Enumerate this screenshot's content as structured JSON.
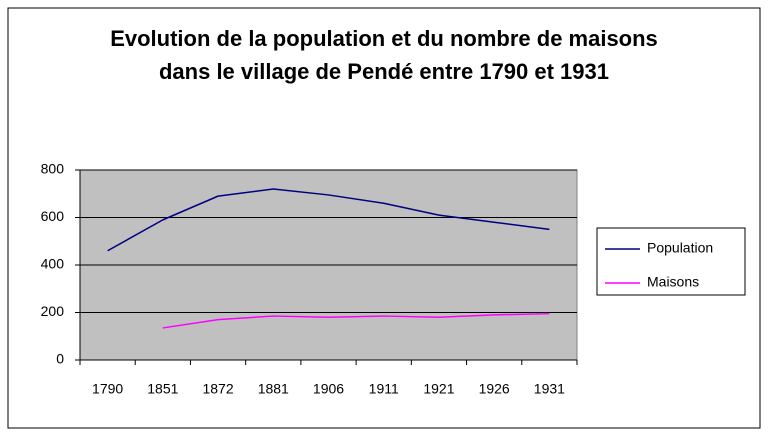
{
  "chart_data": {
    "type": "line",
    "title": "Evolution de la population et du nombre de maisons dans le village de Pendé entre 1790 et 1931",
    "categories": [
      "1790",
      "1851",
      "1872",
      "1881",
      "1906",
      "1911",
      "1921",
      "1926",
      "1931"
    ],
    "series": [
      {
        "name": "Population",
        "color": "#000080",
        "values": [
          460,
          590,
          690,
          720,
          695,
          660,
          610,
          580,
          550
        ]
      },
      {
        "name": "Maisons",
        "color": "#ff00ff",
        "values": [
          null,
          135,
          170,
          185,
          180,
          185,
          180,
          190,
          195
        ]
      }
    ],
    "ylim": [
      0,
      800
    ],
    "yticks": [
      0,
      200,
      400,
      600,
      800
    ],
    "grid": true,
    "legend": "right"
  }
}
